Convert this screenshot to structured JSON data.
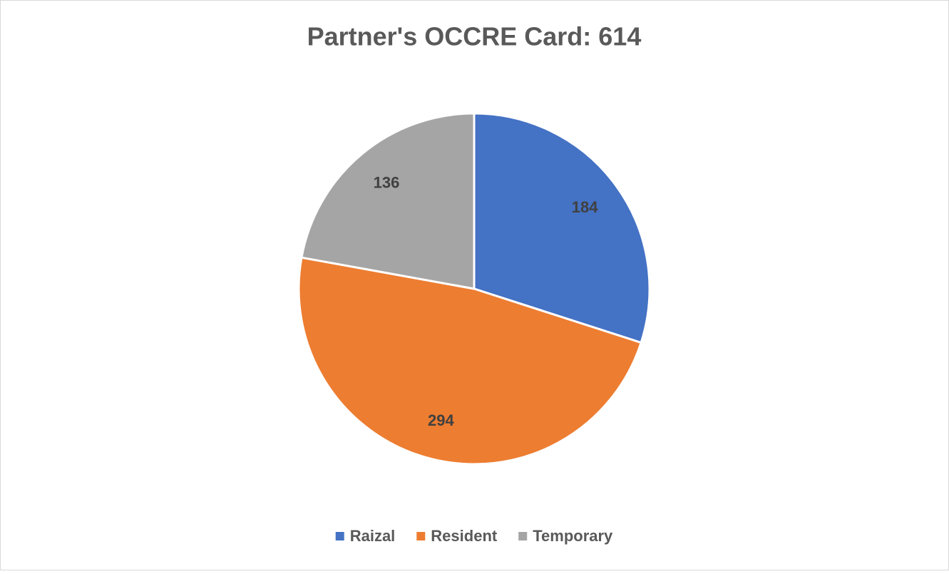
{
  "chart_data": {
    "type": "pie",
    "title": "Partner's OCCRE Card: 614",
    "categories": [
      "Raizal",
      "Resident",
      "Temporary"
    ],
    "values": [
      184,
      294,
      136
    ],
    "colors": [
      "#4472c4",
      "#ed7d31",
      "#a5a5a5"
    ],
    "legend": "bottom"
  }
}
